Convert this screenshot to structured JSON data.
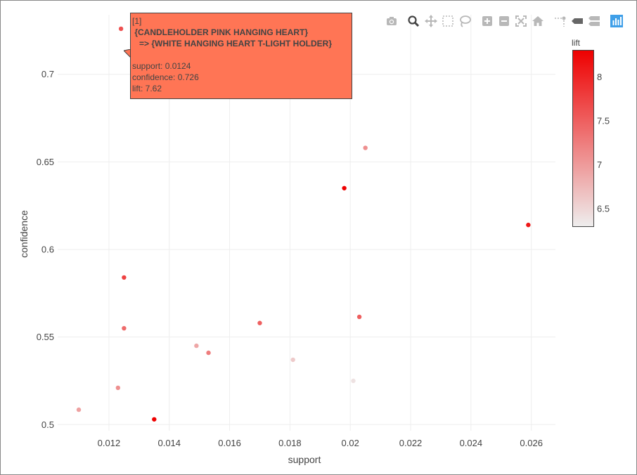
{
  "chart_data": {
    "type": "scatter",
    "xlabel": "support",
    "ylabel": "confidence",
    "xlim": [
      0.0103,
      0.0268
    ],
    "ylim": [
      0.4965,
      0.734
    ],
    "x_ticks": [
      0.012,
      0.014,
      0.016,
      0.018,
      0.02,
      0.022,
      0.024,
      0.026
    ],
    "x_tick_labels": [
      "0.012",
      "0.014",
      "0.016",
      "0.018",
      "0.02",
      "0.022",
      "0.024",
      "0.026"
    ],
    "y_ticks": [
      0.5,
      0.55,
      0.6,
      0.65,
      0.7
    ],
    "y_tick_labels": [
      "0.5",
      "0.55",
      "0.6",
      "0.65",
      "0.7"
    ],
    "grid": true,
    "colorbar": {
      "title": "lift",
      "range": [
        6.3,
        8.3
      ],
      "ticks": [
        6.5,
        7,
        7.5,
        8
      ],
      "tick_labels": [
        "6.5",
        "7",
        "7.5",
        "8"
      ],
      "color_low": "#eeeeee",
      "color_high": "#ee0000"
    },
    "points": [
      {
        "support": 0.0124,
        "confidence": 0.726,
        "lift": 7.62
      },
      {
        "support": 0.0125,
        "confidence": 0.584,
        "lift": 7.75
      },
      {
        "support": 0.0125,
        "confidence": 0.555,
        "lift": 7.4
      },
      {
        "support": 0.0123,
        "confidence": 0.521,
        "lift": 7.1
      },
      {
        "support": 0.011,
        "confidence": 0.5085,
        "lift": 6.95
      },
      {
        "support": 0.0135,
        "confidence": 0.503,
        "lift": 8.3
      },
      {
        "support": 0.0149,
        "confidence": 0.545,
        "lift": 6.9
      },
      {
        "support": 0.0153,
        "confidence": 0.541,
        "lift": 7.25
      },
      {
        "support": 0.017,
        "confidence": 0.558,
        "lift": 7.5
      },
      {
        "support": 0.0181,
        "confidence": 0.537,
        "lift": 6.6
      },
      {
        "support": 0.0198,
        "confidence": 0.635,
        "lift": 8.3
      },
      {
        "support": 0.0201,
        "confidence": 0.525,
        "lift": 6.4
      },
      {
        "support": 0.0203,
        "confidence": 0.5615,
        "lift": 7.5
      },
      {
        "support": 0.0205,
        "confidence": 0.658,
        "lift": 7.1
      },
      {
        "support": 0.0259,
        "confidence": 0.614,
        "lift": 8.1
      }
    ]
  },
  "tooltip": {
    "index": "[1]",
    "lhs": " {CANDLEHOLDER PINK HANGING HEART}",
    "rhs": "   => {WHITE HANGING HEART T-LIGHT HOLDER}",
    "support": "support: 0.0124",
    "confidence": "confidence: 0.726",
    "lift": "lift: 7.62",
    "color": "#ff7555"
  },
  "modebar": {
    "icons": [
      "camera-icon",
      "zoom-icon",
      "pan-icon",
      "box-select-icon",
      "lasso-icon",
      "zoom-in-icon",
      "zoom-out-icon",
      "autoscale-icon",
      "reset-axes-icon",
      "spike-lines-icon",
      "hover-closest-icon",
      "hover-compare-icon",
      "plotly-logo-icon"
    ],
    "active_color": "#444444",
    "inactive_color": "#b8b8b8",
    "logo_color": "#3f9fe8"
  }
}
